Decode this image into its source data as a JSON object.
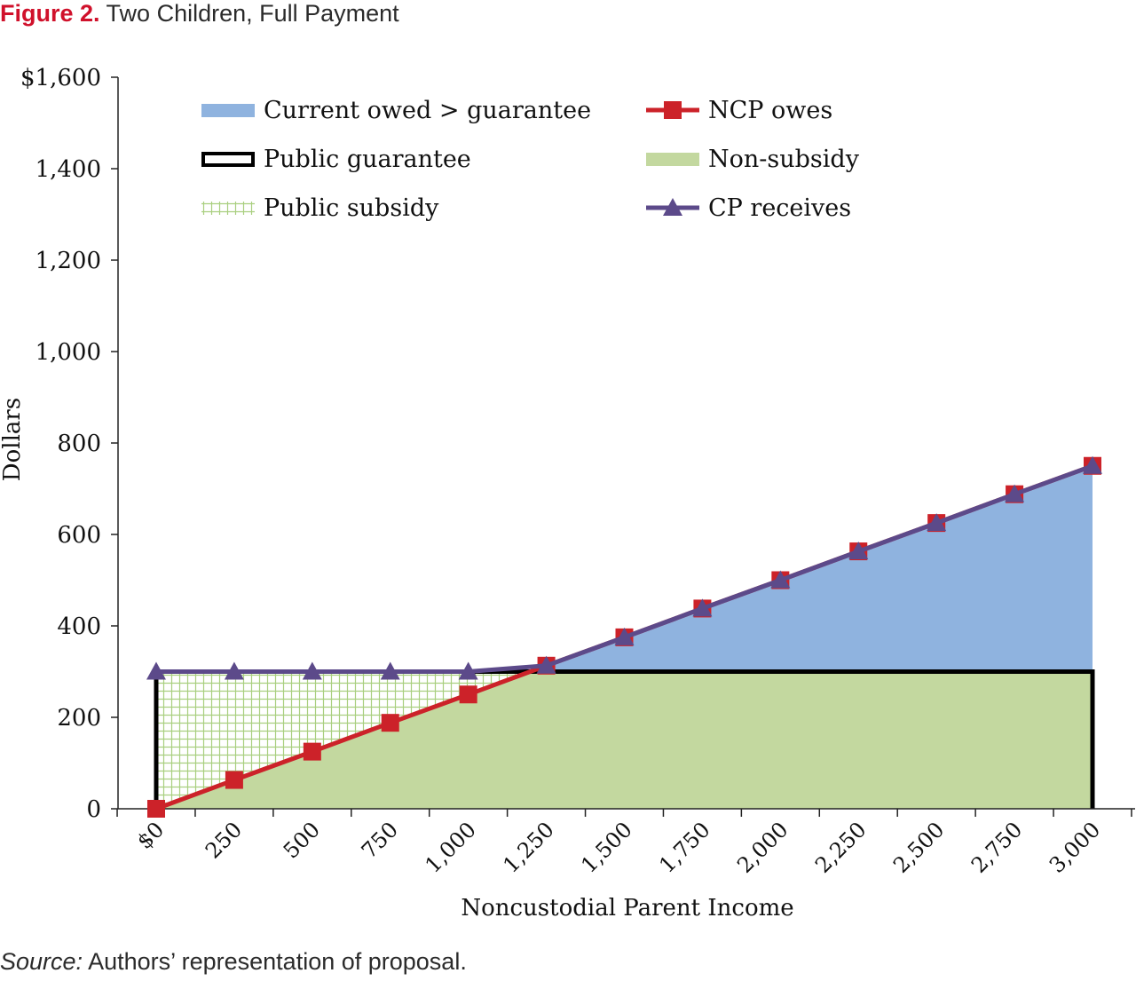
{
  "figure": {
    "number": "Figure 2.",
    "title": "Two Children, Full Payment",
    "source_label": "Source:",
    "source_text": " Authors’ representation of proposal."
  },
  "chart_data": {
    "type": "line",
    "xlabel": "Noncustodial Parent Income",
    "ylabel": "Dollars",
    "xlim": [
      0,
      3000
    ],
    "ylim": [
      0,
      1600
    ],
    "x_ticks": [
      0,
      250,
      500,
      750,
      1000,
      1250,
      1500,
      1750,
      2000,
      2250,
      2500,
      2750,
      3000
    ],
    "x_tick_labels": [
      "$0",
      "250",
      "500",
      "750",
      "1,000",
      "1,250",
      "1,500",
      "1,750",
      "2,000",
      "2,250",
      "2,500",
      "2,750",
      "3,000"
    ],
    "y_ticks": [
      0,
      200,
      400,
      600,
      800,
      1000,
      1200,
      1400,
      1600
    ],
    "y_tick_labels": [
      "0",
      "200",
      "400",
      "600",
      "800",
      "1,000",
      "1,200",
      "1,400",
      "$1,600"
    ],
    "x": [
      0,
      250,
      500,
      750,
      1000,
      1250,
      1500,
      1750,
      2000,
      2250,
      2500,
      2750,
      3000
    ],
    "guarantee": 300,
    "series": [
      {
        "name": "NCP owes",
        "color": "#cc2229",
        "marker": "square",
        "values": [
          0,
          63,
          125,
          188,
          250,
          313,
          375,
          438,
          500,
          563,
          625,
          688,
          750
        ]
      },
      {
        "name": "CP receives",
        "color": "#5c4a8a",
        "marker": "triangle",
        "values": [
          300,
          300,
          300,
          300,
          300,
          313,
          375,
          438,
          500,
          563,
          625,
          688,
          750
        ]
      }
    ],
    "areas": [
      {
        "name": "Current owed > guarantee",
        "color": "#8fb3df"
      },
      {
        "name": "Public guarantee",
        "color": "#000000",
        "style": "outline"
      },
      {
        "name": "Public subsidy",
        "color": "#a9cf7f",
        "style": "grid-hatch"
      },
      {
        "name": "Non-subsidy",
        "color": "#c3d89f"
      }
    ],
    "legend": [
      {
        "label": "Current owed > guarantee",
        "kind": "area",
        "color": "#8fb3df"
      },
      {
        "label": "NCP owes",
        "kind": "line-square",
        "color": "#cc2229"
      },
      {
        "label": "Public guarantee",
        "kind": "outline",
        "color": "#000000"
      },
      {
        "label": "Non-subsidy",
        "kind": "area",
        "color": "#c3d89f"
      },
      {
        "label": "Public subsidy",
        "kind": "hatch",
        "color": "#a9cf7f"
      },
      {
        "label": "CP receives",
        "kind": "line-triangle",
        "color": "#5c4a8a"
      }
    ],
    "legend_placement": "top",
    "grid": false
  }
}
